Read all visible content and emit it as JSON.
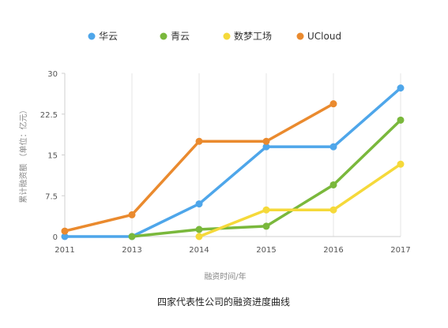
{
  "chart_data": {
    "type": "line",
    "title": "",
    "caption": "四家代表性公司的融资进度曲线",
    "xlabel": "融资时间/年",
    "ylabel": "累计融资额 （单位：亿元）",
    "categories": [
      "2011",
      "2013",
      "2014",
      "2015",
      "2016",
      "2017"
    ],
    "yticks": [
      "0",
      "7.5",
      "15",
      "22.5",
      "30"
    ],
    "ylim": [
      0,
      30
    ],
    "grid": "vertical",
    "legend_position": "top",
    "series": [
      {
        "name": "华云",
        "color": "#4ea6ea",
        "values": [
          0,
          0,
          6,
          16.5,
          16.5,
          27.3
        ]
      },
      {
        "name": "青云",
        "color": "#7ab83c",
        "values": [
          null,
          0,
          1.3,
          1.9,
          9.5,
          21.4
        ]
      },
      {
        "name": "数梦工场",
        "color": "#f5d93a",
        "values": [
          null,
          null,
          0,
          4.9,
          4.9,
          13.3
        ]
      },
      {
        "name": "UCloud",
        "color": "#ea8a2e",
        "values": [
          1,
          4,
          17.5,
          17.5,
          24.4,
          null
        ]
      }
    ]
  }
}
